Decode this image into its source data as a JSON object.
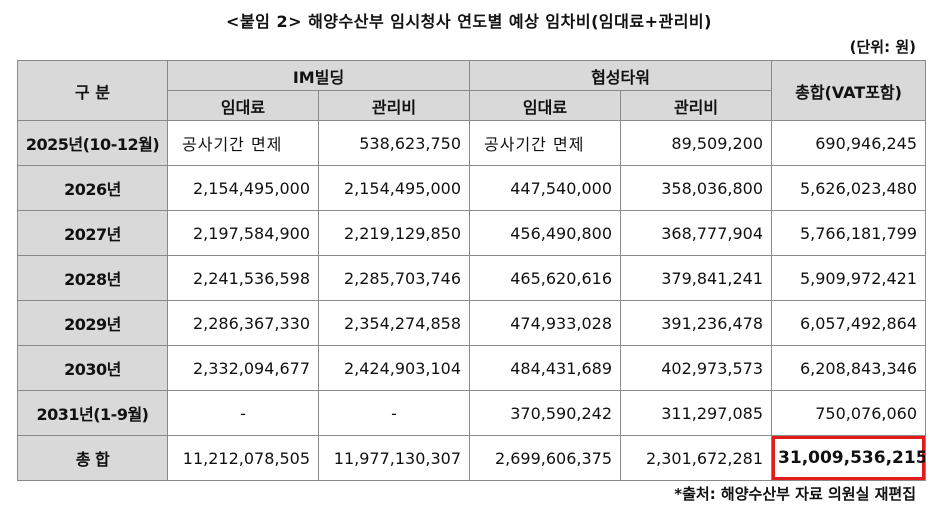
{
  "title": "<붙임 2> 해양수산부 임시청사 연도별 예상 임차비(임대료+관리비)",
  "unit": "(단위: 원)",
  "header": {
    "category": "구 분",
    "group1": "IM빌딩",
    "group2": "협성타워",
    "total": "총합(VAT포함)",
    "rent": "임대료",
    "maintenance": "관리비"
  },
  "rows": [
    {
      "label": "2025년(10-12월)",
      "im_rent": "공사기간 면제",
      "im_maint": "538,623,750",
      "hs_rent": "공사기간 면제",
      "hs_maint": "89,509,200",
      "total": "690,946,245"
    },
    {
      "label": "2026년",
      "im_rent": "2,154,495,000",
      "im_maint": "2,154,495,000",
      "hs_rent": "447,540,000",
      "hs_maint": "358,036,800",
      "total": "5,626,023,480"
    },
    {
      "label": "2027년",
      "im_rent": "2,197,584,900",
      "im_maint": "2,219,129,850",
      "hs_rent": "456,490,800",
      "hs_maint": "368,777,904",
      "total": "5,766,181,799"
    },
    {
      "label": "2028년",
      "im_rent": "2,241,536,598",
      "im_maint": "2,285,703,746",
      "hs_rent": "465,620,616",
      "hs_maint": "379,841,241",
      "total": "5,909,972,421"
    },
    {
      "label": "2029년",
      "im_rent": "2,286,367,330",
      "im_maint": "2,354,274,858",
      "hs_rent": "474,933,028",
      "hs_maint": "391,236,478",
      "total": "6,057,492,864"
    },
    {
      "label": "2030년",
      "im_rent": "2,332,094,677",
      "im_maint": "2,424,903,104",
      "hs_rent": "484,431,689",
      "hs_maint": "402,973,573",
      "total": "6,208,843,346"
    },
    {
      "label": "2031년(1-9월)",
      "im_rent": "-",
      "im_maint": "-",
      "hs_rent": "370,590,242",
      "hs_maint": "311,297,085",
      "total": "750,076,060"
    }
  ],
  "sum_row": {
    "label": "총 합",
    "im_rent": "11,212,078,505",
    "im_maint": "11,977,130,307",
    "hs_rent": "2,699,606,375",
    "hs_maint": "2,301,672,281",
    "total": "31,009,536,215"
  },
  "highlight_color": "#e31b1b",
  "source": "*출처: 해양수산부 자료 의원실 재편집"
}
